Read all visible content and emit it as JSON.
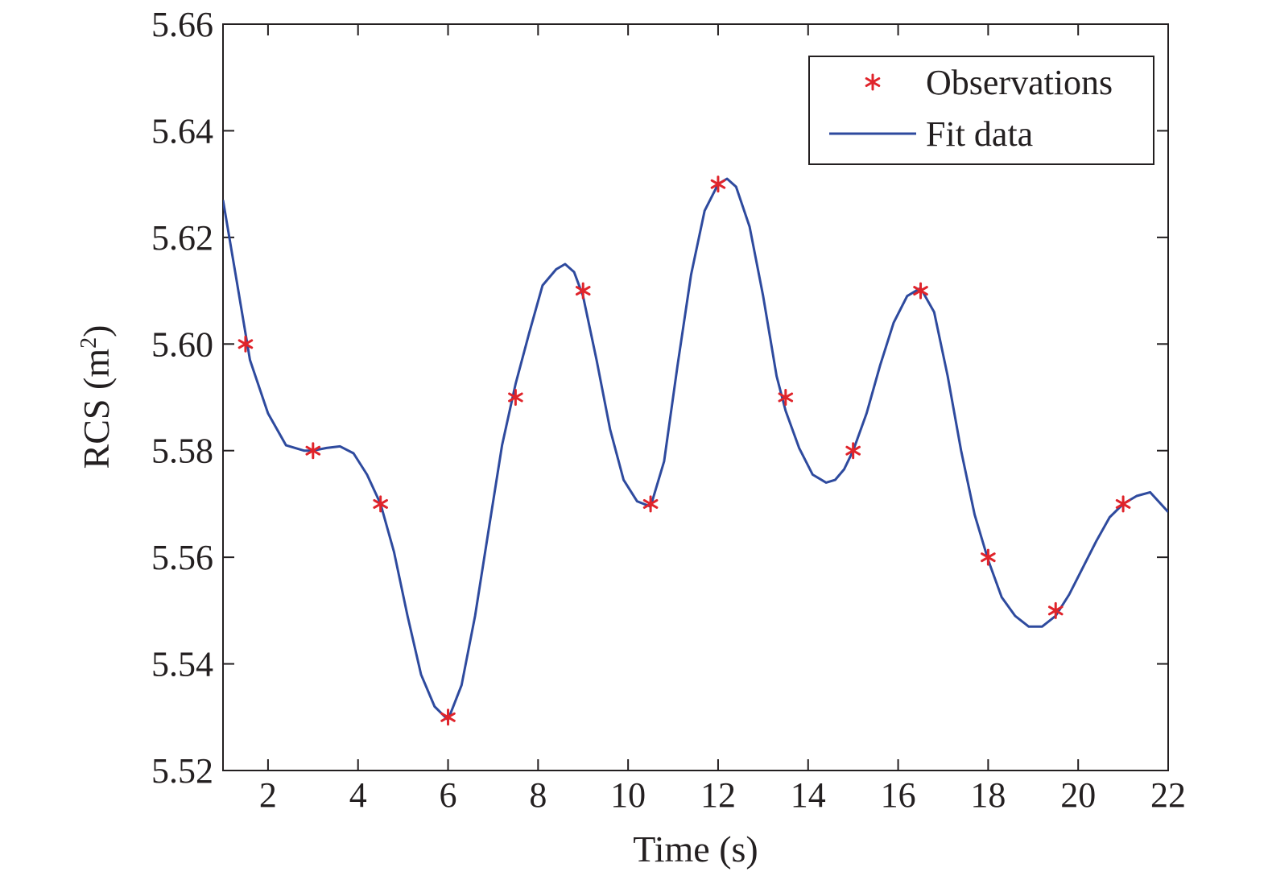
{
  "chart_data": {
    "type": "line",
    "xlabel": "Time (s)",
    "ylabel_main": "RCS (m",
    "ylabel_sup": "2",
    "ylabel_close": ")",
    "xlim": [
      1,
      22
    ],
    "ylim": [
      5.52,
      5.66
    ],
    "xticks": [
      2,
      4,
      6,
      8,
      10,
      12,
      14,
      16,
      18,
      20,
      22
    ],
    "yticks": [
      5.52,
      5.54,
      5.56,
      5.58,
      5.6,
      5.62,
      5.64,
      5.66
    ],
    "ytick_labels": [
      "5.52",
      "5.54",
      "5.56",
      "5.58",
      "5.60",
      "5.62",
      "5.64",
      "5.66"
    ],
    "grid": false,
    "legend_position": "top-right",
    "series": [
      {
        "name": "Observations",
        "kind": "marker",
        "marker": "asterisk",
        "color": "#e0242b",
        "x": [
          1.5,
          3,
          4.5,
          6,
          7.5,
          9,
          10.5,
          12,
          13.5,
          15,
          16.5,
          18,
          19.5,
          21
        ],
        "y": [
          5.6,
          5.58,
          5.57,
          5.53,
          5.59,
          5.61,
          5.57,
          5.63,
          5.59,
          5.58,
          5.61,
          5.56,
          5.55,
          5.57
        ]
      },
      {
        "name": "Fit data",
        "kind": "line",
        "color": "#2e4a9e",
        "x": [
          1.0,
          1.3,
          1.6,
          2.0,
          2.4,
          2.8,
          3.0,
          3.3,
          3.6,
          3.9,
          4.2,
          4.5,
          4.8,
          5.1,
          5.4,
          5.7,
          6.0,
          6.3,
          6.6,
          6.9,
          7.2,
          7.5,
          7.8,
          8.1,
          8.4,
          8.6,
          8.8,
          9.0,
          9.3,
          9.6,
          9.9,
          10.2,
          10.5,
          10.8,
          11.1,
          11.4,
          11.7,
          12.0,
          12.2,
          12.4,
          12.7,
          13.0,
          13.3,
          13.5,
          13.8,
          14.1,
          14.4,
          14.6,
          14.8,
          15.0,
          15.3,
          15.6,
          15.9,
          16.2,
          16.5,
          16.8,
          17.1,
          17.4,
          17.7,
          18.0,
          18.3,
          18.6,
          18.9,
          19.2,
          19.5,
          19.8,
          20.1,
          20.4,
          20.7,
          21.0,
          21.3,
          21.6,
          22.0
        ],
        "y": [
          5.627,
          5.612,
          5.597,
          5.587,
          5.581,
          5.58,
          5.58,
          5.5805,
          5.5808,
          5.5795,
          5.5755,
          5.57,
          5.561,
          5.549,
          5.538,
          5.532,
          5.5295,
          5.536,
          5.549,
          5.565,
          5.581,
          5.5925,
          5.602,
          5.611,
          5.614,
          5.615,
          5.6135,
          5.609,
          5.597,
          5.584,
          5.5745,
          5.5705,
          5.5695,
          5.578,
          5.596,
          5.613,
          5.625,
          5.63,
          5.631,
          5.6295,
          5.622,
          5.609,
          5.594,
          5.5875,
          5.5805,
          5.5755,
          5.574,
          5.5745,
          5.5765,
          5.58,
          5.587,
          5.596,
          5.604,
          5.609,
          5.6105,
          5.606,
          5.594,
          5.58,
          5.568,
          5.5595,
          5.5525,
          5.549,
          5.547,
          5.547,
          5.549,
          5.553,
          5.558,
          5.563,
          5.5675,
          5.57,
          5.5715,
          5.5722,
          5.5685
        ]
      }
    ]
  }
}
